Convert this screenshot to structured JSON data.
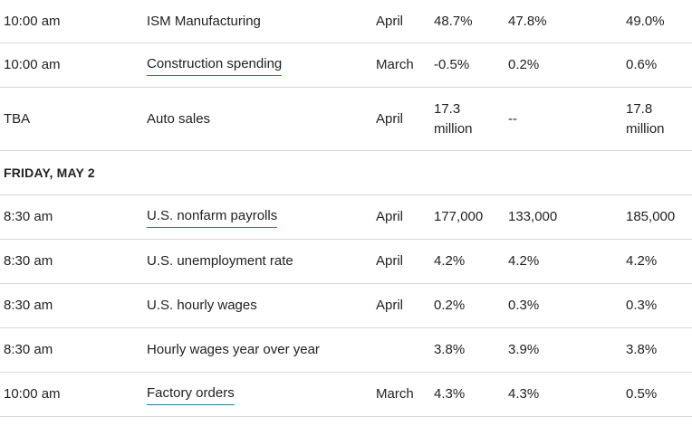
{
  "rows": [
    {
      "type": "data",
      "time": "10:00 am",
      "event": "ISM Manufacturing",
      "link": false,
      "period": "April",
      "actual": "48.7%",
      "forecast": "47.8%",
      "previous": "49.0%"
    },
    {
      "type": "data",
      "time": "10:00 am",
      "event": "Construction spending",
      "link": true,
      "period": "March",
      "actual": "-0.5%",
      "forecast": "0.2%",
      "previous": "0.6%"
    },
    {
      "type": "data",
      "time": "TBA",
      "event": "Auto sales",
      "link": false,
      "period": "April",
      "actual": "17.3\nmillion",
      "forecast": "--",
      "previous": "17.8\nmillion"
    },
    {
      "type": "day",
      "label": "FRIDAY, MAY 2"
    },
    {
      "type": "data",
      "time": "8:30 am",
      "event": "U.S. nonfarm payrolls",
      "link": true,
      "period": "April",
      "actual": "177,000",
      "forecast": "133,000",
      "previous": "185,000"
    },
    {
      "type": "data",
      "time": "8:30 am",
      "event": "U.S. unemployment rate",
      "link": false,
      "period": "April",
      "actual": "4.2%",
      "forecast": "4.2%",
      "previous": "4.2%"
    },
    {
      "type": "data",
      "time": "8:30 am",
      "event": "U.S. hourly wages",
      "link": false,
      "period": "April",
      "actual": "0.2%",
      "forecast": "0.3%",
      "previous": "0.3%"
    },
    {
      "type": "data",
      "time": "8:30 am",
      "event": "Hourly wages year over year",
      "link": false,
      "period": "",
      "actual": "3.8%",
      "forecast": "3.9%",
      "previous": "3.8%"
    },
    {
      "type": "data",
      "time": "10:00 am",
      "event": "Factory orders",
      "link": true,
      "period": "March",
      "actual": "4.3%",
      "forecast": "4.3%",
      "previous": "0.5%"
    }
  ]
}
